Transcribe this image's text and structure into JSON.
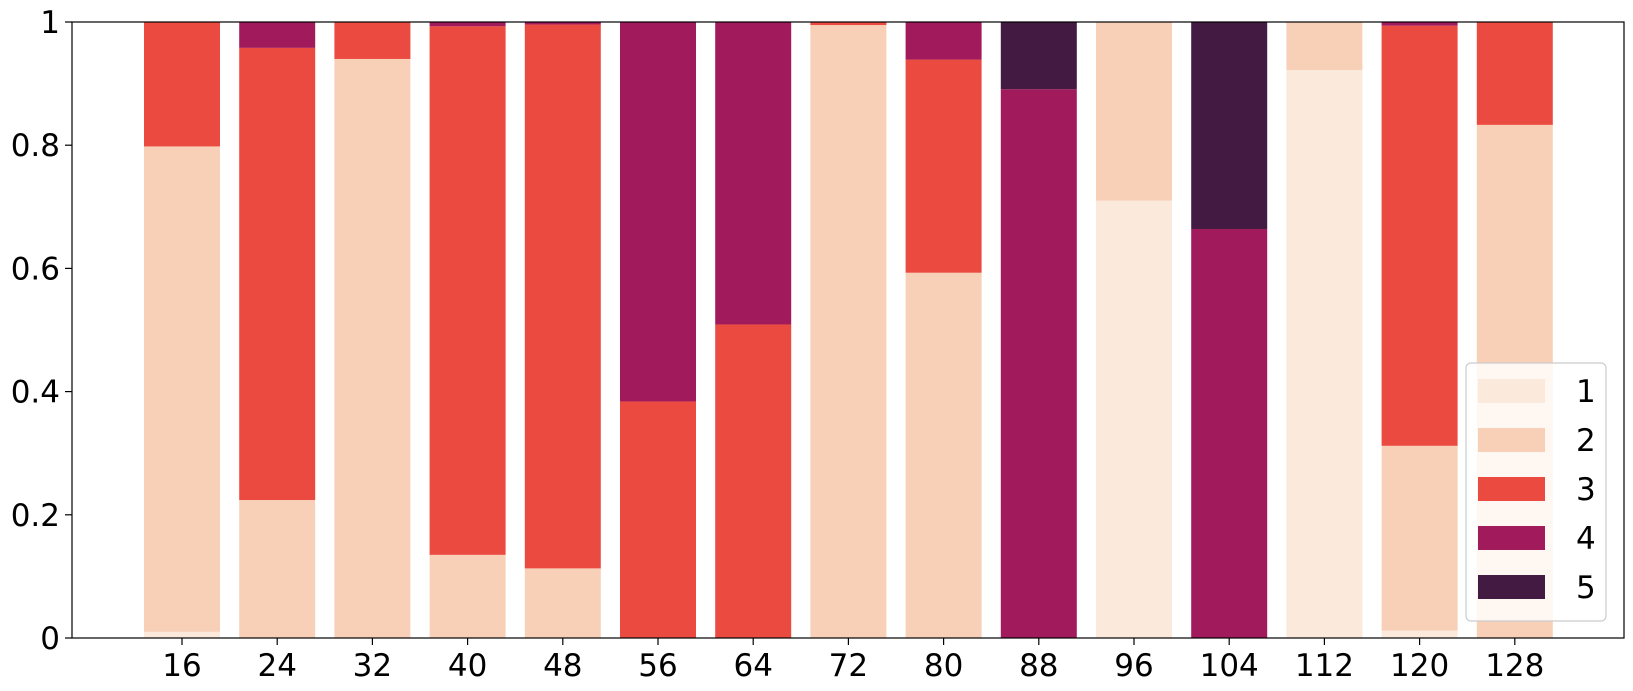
{
  "chart_data": {
    "type": "bar",
    "stacked": true,
    "categories": [
      "16",
      "24",
      "32",
      "40",
      "48",
      "56",
      "64",
      "72",
      "80",
      "88",
      "96",
      "104",
      "112",
      "120",
      "128"
    ],
    "ylim": [
      0,
      1
    ],
    "yticks": [
      {
        "value": 0,
        "label": "0"
      },
      {
        "value": 0.2,
        "label": "0.2"
      },
      {
        "value": 0.4,
        "label": "0.4"
      },
      {
        "value": 0.6,
        "label": "0.6"
      },
      {
        "value": 0.8,
        "label": "0.8"
      },
      {
        "value": 1,
        "label": "1"
      }
    ],
    "grid": false,
    "legend_position": "lower-right",
    "series": [
      {
        "name": "1",
        "color": "#fbe9dc",
        "values": [
          0.01,
          0,
          0,
          0,
          0,
          0,
          0,
          0,
          0,
          0,
          0.71,
          0,
          0.922,
          0.012,
          0
        ]
      },
      {
        "name": "2",
        "color": "#f8d0b8",
        "values": [
          0.788,
          0.224,
          0.94,
          0.135,
          0.113,
          0,
          0,
          0.995,
          0.593,
          0,
          0.29,
          0,
          0.078,
          0.3,
          0.833
        ]
      },
      {
        "name": "3",
        "color": "#eb4a40",
        "values": [
          0.202,
          0.734,
          0.06,
          0.858,
          0.883,
          0.384,
          0.509,
          0.005,
          0.346,
          0,
          0,
          0,
          0,
          0.682,
          0.167
        ]
      },
      {
        "name": "4",
        "color": "#a11a5b",
        "values": [
          0,
          0.042,
          0,
          0.007,
          0.004,
          0.616,
          0.491,
          0,
          0.061,
          0.891,
          0,
          0.664,
          0,
          0.006,
          0
        ]
      },
      {
        "name": "5",
        "color": "#421a42",
        "values": [
          0,
          0,
          0,
          0,
          0,
          0,
          0,
          0,
          0,
          0.109,
          0,
          0.336,
          0,
          0,
          0
        ]
      }
    ]
  }
}
